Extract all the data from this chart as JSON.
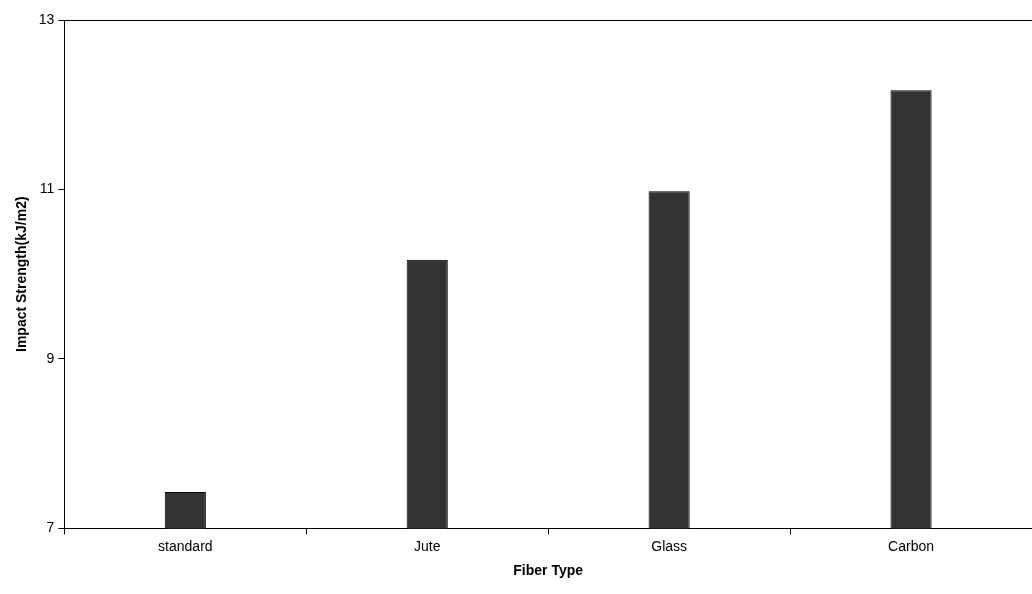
{
  "chart_data": {
    "type": "bar",
    "xlabel": "Fiber Type",
    "ylabel": "Impact Strength(kJ/m2)",
    "categories": [
      "standard",
      "Jute",
      "Glass",
      "Carbon"
    ],
    "values": [
      7.43,
      10.17,
      10.98,
      12.17
    ],
    "color": "#333333",
    "ylim": [
      7,
      13
    ],
    "yticks": [
      7,
      9,
      11,
      13
    ],
    "legend": false
  }
}
